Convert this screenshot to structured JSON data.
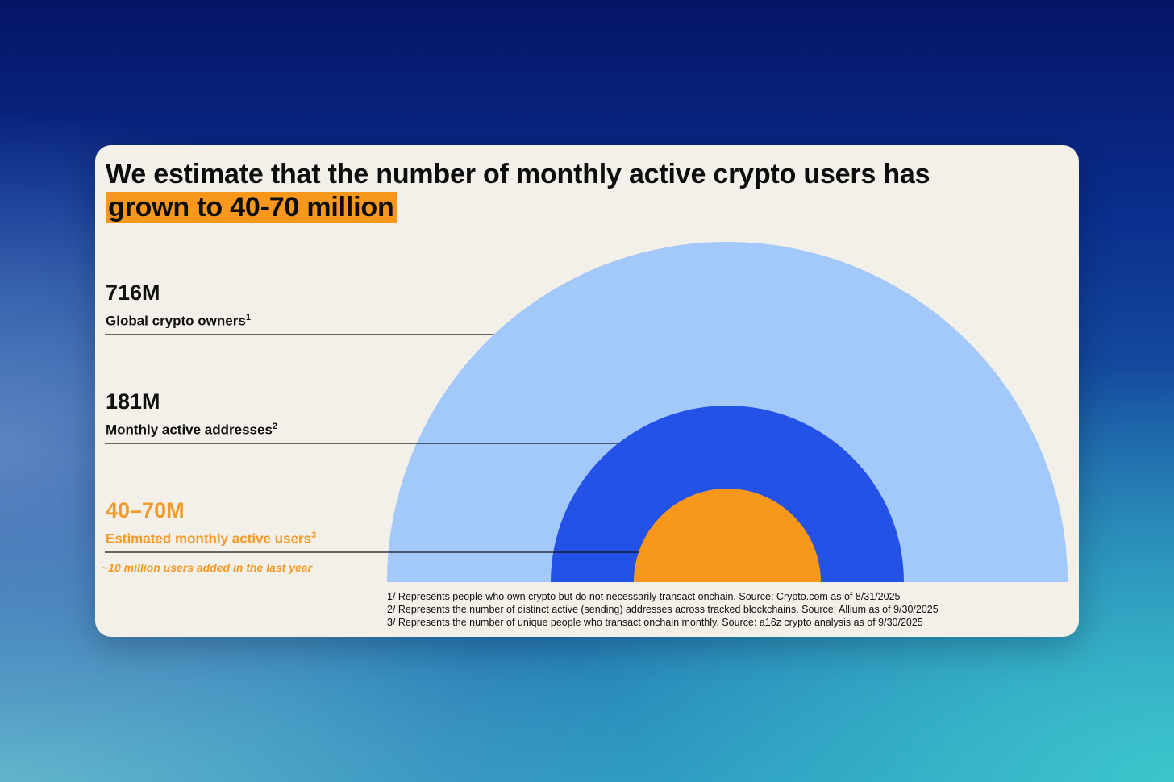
{
  "title": {
    "prefix": "We estimate that the number of monthly active crypto users has ",
    "highlight": "grown to 40-70 million"
  },
  "metrics": [
    {
      "value": "716M",
      "label": "Global crypto owners",
      "sup": "1"
    },
    {
      "value": "181M",
      "label": "Monthly active addresses",
      "sup": "2"
    },
    {
      "value": "40–70M",
      "label": "Estimated monthly active users",
      "sup": "3"
    }
  ],
  "note": "~10 million users added in the last year",
  "footnotes": [
    "1/ Represents people who own crypto but do not necessarily transact onchain. Source: Crypto.com as of 8/31/2025",
    "2/ Represents the number of distinct active (sending) addresses across tracked blockchains. Source: Allium as of 9/30/2025",
    "3/ Represents the number of unique people who transact onchain monthly. Source: a16z crypto analysis as of 9/30/2025"
  ],
  "colors": {
    "outer": "#a3c8fa",
    "middle": "#2552e6",
    "inner": "#f7981d",
    "highlight": "#f7981d",
    "card": "#f2f0e8"
  },
  "chart_data": {
    "type": "area",
    "series": [
      {
        "name": "Global crypto owners",
        "value": 716,
        "unit": "M"
      },
      {
        "name": "Monthly active addresses",
        "value": 181,
        "unit": "M"
      },
      {
        "name": "Estimated monthly active users",
        "value_range": [
          40,
          70
        ],
        "unit": "M"
      }
    ],
    "title": "We estimate that the number of monthly active crypto users has grown to 40-70 million"
  }
}
